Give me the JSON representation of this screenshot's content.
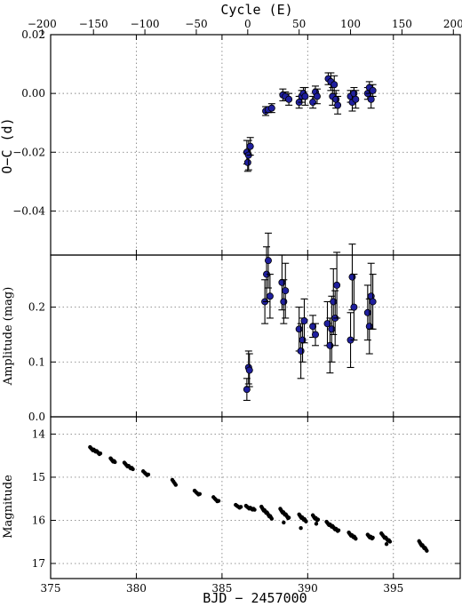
{
  "chart_data": [
    {
      "panel": "top",
      "type": "scatter",
      "title": "",
      "top_axis_label": "Cycle (E)",
      "top_axis_ticks": [
        -200,
        -150,
        -100,
        -50,
        0,
        50,
        100,
        150,
        200
      ],
      "top_axis_ticks_label": [
        "−200",
        "−150",
        "−100",
        "−50",
        "0",
        "50",
        "100",
        "150",
        "200"
      ],
      "xlabel": "",
      "ylabel": "O−C (d)",
      "xlim": [
        375,
        398.9
      ],
      "ylim": [
        -0.055,
        0.02
      ],
      "yticks": [
        -0.04,
        -0.02,
        0.0,
        0.02
      ],
      "yticks_label": [
        "−0.04",
        "−0.02",
        "0.00",
        "0.02"
      ],
      "grid": true,
      "marker_color": "#1f1f9e",
      "points": [
        {
          "x": 386.45,
          "y": -0.02,
          "err": 0.004
        },
        {
          "x": 386.5,
          "y": -0.0235,
          "err": 0.003
        },
        {
          "x": 386.55,
          "y": -0.021,
          "err": 0.005
        },
        {
          "x": 386.65,
          "y": -0.018,
          "err": 0.003
        },
        {
          "x": 387.55,
          "y": -0.006,
          "err": 0.0015
        },
        {
          "x": 387.7,
          "y": -0.0055,
          "err": 0.001
        },
        {
          "x": 387.9,
          "y": -0.005,
          "err": 0.0015
        },
        {
          "x": 388.55,
          "y": -0.0005,
          "err": 0.002
        },
        {
          "x": 388.7,
          "y": -0.001,
          "err": 0.0015
        },
        {
          "x": 388.9,
          "y": -0.002,
          "err": 0.002
        },
        {
          "x": 389.5,
          "y": -0.003,
          "err": 0.002
        },
        {
          "x": 389.65,
          "y": -0.001,
          "err": 0.002
        },
        {
          "x": 389.75,
          "y": 0.0,
          "err": 0.002
        },
        {
          "x": 389.85,
          "y": -0.001,
          "err": 0.003
        },
        {
          "x": 390.3,
          "y": -0.003,
          "err": 0.002
        },
        {
          "x": 390.45,
          "y": 0.0005,
          "err": 0.002
        },
        {
          "x": 390.55,
          "y": -0.001,
          "err": 0.0025
        },
        {
          "x": 391.2,
          "y": 0.005,
          "err": 0.002
        },
        {
          "x": 391.35,
          "y": 0.004,
          "err": 0.003
        },
        {
          "x": 391.45,
          "y": -0.001,
          "err": 0.003
        },
        {
          "x": 391.55,
          "y": 0.003,
          "err": 0.003
        },
        {
          "x": 391.65,
          "y": -0.002,
          "err": 0.003
        },
        {
          "x": 391.75,
          "y": -0.004,
          "err": 0.003
        },
        {
          "x": 392.5,
          "y": -0.001,
          "err": 0.002
        },
        {
          "x": 392.6,
          "y": -0.003,
          "err": 0.003
        },
        {
          "x": 392.7,
          "y": 0.0,
          "err": 0.002
        },
        {
          "x": 392.8,
          "y": -0.002,
          "err": 0.003
        },
        {
          "x": 393.5,
          "y": 0.0,
          "err": 0.002
        },
        {
          "x": 393.6,
          "y": 0.002,
          "err": 0.002
        },
        {
          "x": 393.7,
          "y": -0.002,
          "err": 0.003
        },
        {
          "x": 393.8,
          "y": 0.001,
          "err": 0.002
        }
      ]
    },
    {
      "panel": "middle",
      "type": "scatter",
      "xlabel": "",
      "ylabel": "Amplitude (mag)",
      "xlim": [
        375,
        398.9
      ],
      "ylim": [
        0.0,
        0.295
      ],
      "yticks": [
        0.0,
        0.1,
        0.2
      ],
      "yticks_label": [
        "0.0",
        "0.1",
        "0.2"
      ],
      "grid": true,
      "marker_color": "#1f1f9e",
      "points": [
        {
          "x": 386.45,
          "y": 0.05,
          "err": 0.02
        },
        {
          "x": 386.55,
          "y": 0.09,
          "err": 0.03
        },
        {
          "x": 386.6,
          "y": 0.085,
          "err": 0.03
        },
        {
          "x": 387.5,
          "y": 0.21,
          "err": 0.04
        },
        {
          "x": 387.6,
          "y": 0.26,
          "err": 0.05
        },
        {
          "x": 387.7,
          "y": 0.285,
          "err": 0.05
        },
        {
          "x": 387.8,
          "y": 0.22,
          "err": 0.04
        },
        {
          "x": 388.5,
          "y": 0.245,
          "err": 0.05
        },
        {
          "x": 388.6,
          "y": 0.21,
          "err": 0.04
        },
        {
          "x": 388.7,
          "y": 0.23,
          "err": 0.05
        },
        {
          "x": 389.5,
          "y": 0.16,
          "err": 0.04
        },
        {
          "x": 389.6,
          "y": 0.12,
          "err": 0.05
        },
        {
          "x": 389.7,
          "y": 0.14,
          "err": 0.04
        },
        {
          "x": 389.8,
          "y": 0.175,
          "err": 0.04
        },
        {
          "x": 390.3,
          "y": 0.165,
          "err": 0.02
        },
        {
          "x": 390.45,
          "y": 0.15,
          "err": 0.02
        },
        {
          "x": 391.15,
          "y": 0.17,
          "err": 0.04
        },
        {
          "x": 391.3,
          "y": 0.13,
          "err": 0.05
        },
        {
          "x": 391.4,
          "y": 0.16,
          "err": 0.06
        },
        {
          "x": 391.5,
          "y": 0.21,
          "err": 0.06
        },
        {
          "x": 391.6,
          "y": 0.18,
          "err": 0.05
        },
        {
          "x": 391.7,
          "y": 0.24,
          "err": 0.06
        },
        {
          "x": 392.5,
          "y": 0.14,
          "err": 0.05
        },
        {
          "x": 392.6,
          "y": 0.255,
          "err": 0.06
        },
        {
          "x": 392.7,
          "y": 0.2,
          "err": 0.06
        },
        {
          "x": 393.5,
          "y": 0.19,
          "err": 0.05
        },
        {
          "x": 393.6,
          "y": 0.165,
          "err": 0.05
        },
        {
          "x": 393.7,
          "y": 0.22,
          "err": 0.06
        },
        {
          "x": 393.8,
          "y": 0.21,
          "err": 0.05
        }
      ]
    },
    {
      "panel": "bottom",
      "type": "scatter",
      "xlabel": "BJD − 2457000",
      "ylabel": "Magnitude",
      "xlim": [
        375,
        398.9
      ],
      "ylim": [
        17.35,
        13.6
      ],
      "xticks": [
        375,
        380,
        385,
        390,
        395
      ],
      "yticks": [
        14,
        15,
        16,
        17
      ],
      "grid": true,
      "marker_color": "#000000",
      "segments": [
        {
          "x0": 377.3,
          "x1": 377.9,
          "y0": 14.32,
          "y1": 14.46,
          "n": 12
        },
        {
          "x0": 378.5,
          "x1": 378.75,
          "y0": 14.58,
          "y1": 14.65,
          "n": 6
        },
        {
          "x0": 379.3,
          "x1": 379.8,
          "y0": 14.68,
          "y1": 14.82,
          "n": 9
        },
        {
          "x0": 380.4,
          "x1": 380.7,
          "y0": 14.88,
          "y1": 14.95,
          "n": 5
        },
        {
          "x0": 382.1,
          "x1": 382.3,
          "y0": 15.08,
          "y1": 15.16,
          "n": 4
        },
        {
          "x0": 383.4,
          "x1": 383.7,
          "y0": 15.33,
          "y1": 15.4,
          "n": 5
        },
        {
          "x0": 384.5,
          "x1": 384.8,
          "y0": 15.48,
          "y1": 15.56,
          "n": 5
        },
        {
          "x0": 385.8,
          "x1": 386.1,
          "y0": 15.66,
          "y1": 15.7,
          "n": 5
        },
        {
          "x0": 386.4,
          "x1": 386.9,
          "y0": 15.68,
          "y1": 15.76,
          "n": 9
        },
        {
          "x0": 387.3,
          "x1": 387.9,
          "y0": 15.7,
          "y1": 15.95,
          "n": 14
        },
        {
          "x0": 388.4,
          "x1": 388.9,
          "y0": 15.75,
          "y1": 15.95,
          "n": 12
        },
        {
          "x0": 389.5,
          "x1": 389.9,
          "y0": 15.88,
          "y1": 16.02,
          "n": 10
        },
        {
          "x0": 390.3,
          "x1": 390.6,
          "y0": 15.9,
          "y1": 16.0,
          "n": 8
        },
        {
          "x0": 391.1,
          "x1": 391.8,
          "y0": 16.05,
          "y1": 16.25,
          "n": 15
        },
        {
          "x0": 392.4,
          "x1": 392.8,
          "y0": 16.3,
          "y1": 16.42,
          "n": 10
        },
        {
          "x0": 393.5,
          "x1": 393.8,
          "y0": 16.35,
          "y1": 16.42,
          "n": 8
        },
        {
          "x0": 394.3,
          "x1": 394.8,
          "y0": 16.32,
          "y1": 16.5,
          "n": 9
        },
        {
          "x0": 396.5,
          "x1": 396.95,
          "y0": 16.5,
          "y1": 16.7,
          "n": 10
        }
      ],
      "extra_points": [
        {
          "x": 388.6,
          "y": 16.05
        },
        {
          "x": 389.6,
          "y": 16.18
        },
        {
          "x": 390.5,
          "y": 16.08
        },
        {
          "x": 394.6,
          "y": 16.55
        }
      ]
    }
  ]
}
